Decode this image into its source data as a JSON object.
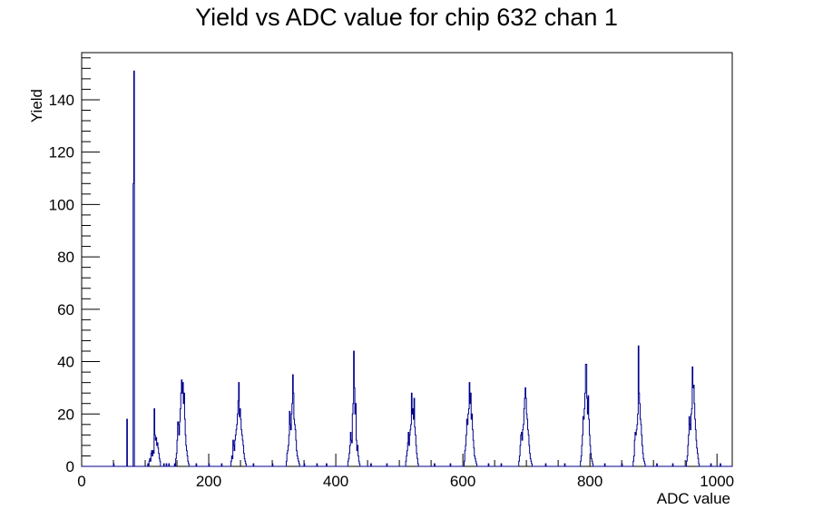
{
  "chart_data": {
    "type": "histogram",
    "title": "Yield vs ADC value for chip 632 chan 1",
    "xlabel": "ADC value",
    "ylabel": "Yield",
    "xlim": [
      0,
      1024
    ],
    "ylim": [
      0,
      158
    ],
    "x_ticks": [
      0,
      200,
      400,
      600,
      800,
      1000
    ],
    "y_ticks": [
      0,
      20,
      40,
      60,
      80,
      100,
      120,
      140
    ],
    "x_tick_labels": [
      "0",
      "200",
      "400",
      "600",
      "800",
      "1000"
    ],
    "y_tick_labels": [
      "0",
      "20",
      "40",
      "60",
      "80",
      "100",
      "120",
      "140"
    ],
    "grid": false,
    "legend": "none",
    "line_color": "#00008b",
    "bins": [
      [
        50,
        1
      ],
      [
        71,
        18
      ],
      [
        72,
        0
      ],
      [
        81,
        108
      ],
      [
        82,
        151
      ],
      [
        83,
        0
      ],
      [
        104,
        1
      ],
      [
        106,
        2
      ],
      [
        107,
        3
      ],
      [
        108,
        2
      ],
      [
        109,
        5
      ],
      [
        110,
        6
      ],
      [
        111,
        4
      ],
      [
        112,
        6
      ],
      [
        113,
        5
      ],
      [
        114,
        22
      ],
      [
        115,
        12
      ],
      [
        116,
        10
      ],
      [
        117,
        11
      ],
      [
        118,
        8
      ],
      [
        119,
        9
      ],
      [
        120,
        7
      ],
      [
        121,
        5
      ],
      [
        122,
        3
      ],
      [
        123,
        2
      ],
      [
        124,
        0
      ],
      [
        129,
        1
      ],
      [
        133,
        1
      ],
      [
        137,
        1
      ],
      [
        146,
        1
      ],
      [
        148,
        3
      ],
      [
        149,
        5
      ],
      [
        150,
        10
      ],
      [
        151,
        17
      ],
      [
        152,
        16
      ],
      [
        153,
        12
      ],
      [
        154,
        17
      ],
      [
        155,
        22
      ],
      [
        156,
        28
      ],
      [
        157,
        33
      ],
      [
        158,
        28
      ],
      [
        159,
        32
      ],
      [
        160,
        24
      ],
      [
        161,
        28
      ],
      [
        162,
        18
      ],
      [
        163,
        12
      ],
      [
        164,
        8
      ],
      [
        165,
        6
      ],
      [
        166,
        4
      ],
      [
        167,
        2
      ],
      [
        168,
        1
      ],
      [
        169,
        0
      ],
      [
        180,
        1
      ],
      [
        200,
        1
      ],
      [
        220,
        1
      ],
      [
        235,
        2
      ],
      [
        236,
        4
      ],
      [
        237,
        3
      ],
      [
        238,
        10
      ],
      [
        239,
        8
      ],
      [
        240,
        6
      ],
      [
        241,
        10
      ],
      [
        242,
        12
      ],
      [
        243,
        14
      ],
      [
        244,
        16
      ],
      [
        245,
        20
      ],
      [
        246,
        25
      ],
      [
        247,
        32
      ],
      [
        248,
        19
      ],
      [
        249,
        22
      ],
      [
        250,
        18
      ],
      [
        251,
        14
      ],
      [
        252,
        12
      ],
      [
        253,
        10
      ],
      [
        254,
        8
      ],
      [
        255,
        5
      ],
      [
        256,
        3
      ],
      [
        257,
        2
      ],
      [
        258,
        1
      ],
      [
        259,
        0
      ],
      [
        270,
        1
      ],
      [
        300,
        1
      ],
      [
        322,
        2
      ],
      [
        323,
        5
      ],
      [
        324,
        6
      ],
      [
        325,
        8
      ],
      [
        326,
        12
      ],
      [
        327,
        21
      ],
      [
        328,
        16
      ],
      [
        329,
        14
      ],
      [
        330,
        20
      ],
      [
        331,
        24
      ],
      [
        332,
        35
      ],
      [
        333,
        28
      ],
      [
        334,
        18
      ],
      [
        335,
        16
      ],
      [
        336,
        14
      ],
      [
        337,
        10
      ],
      [
        338,
        6
      ],
      [
        339,
        4
      ],
      [
        340,
        3
      ],
      [
        341,
        2
      ],
      [
        342,
        1
      ],
      [
        343,
        0
      ],
      [
        350,
        1
      ],
      [
        370,
        1
      ],
      [
        385,
        1
      ],
      [
        419,
        2
      ],
      [
        420,
        3
      ],
      [
        421,
        5
      ],
      [
        422,
        8
      ],
      [
        423,
        13
      ],
      [
        424,
        10
      ],
      [
        425,
        9
      ],
      [
        426,
        20
      ],
      [
        427,
        24
      ],
      [
        428,
        44
      ],
      [
        429,
        30
      ],
      [
        430,
        20
      ],
      [
        431,
        24
      ],
      [
        432,
        10
      ],
      [
        433,
        6
      ],
      [
        434,
        8
      ],
      [
        435,
        4
      ],
      [
        436,
        2
      ],
      [
        437,
        1
      ],
      [
        438,
        0
      ],
      [
        455,
        1
      ],
      [
        480,
        1
      ],
      [
        510,
        2
      ],
      [
        511,
        4
      ],
      [
        512,
        6
      ],
      [
        513,
        9
      ],
      [
        514,
        13
      ],
      [
        515,
        8
      ],
      [
        516,
        12
      ],
      [
        517,
        14
      ],
      [
        518,
        16
      ],
      [
        519,
        28
      ],
      [
        520,
        20
      ],
      [
        521,
        22
      ],
      [
        522,
        18
      ],
      [
        523,
        26
      ],
      [
        524,
        15
      ],
      [
        525,
        12
      ],
      [
        526,
        8
      ],
      [
        527,
        5
      ],
      [
        528,
        3
      ],
      [
        529,
        1
      ],
      [
        530,
        0
      ],
      [
        555,
        1
      ],
      [
        580,
        1
      ],
      [
        602,
        2
      ],
      [
        603,
        6
      ],
      [
        604,
        8
      ],
      [
        605,
        12
      ],
      [
        606,
        18
      ],
      [
        607,
        16
      ],
      [
        608,
        20
      ],
      [
        609,
        22
      ],
      [
        610,
        32
      ],
      [
        611,
        24
      ],
      [
        612,
        28
      ],
      [
        613,
        18
      ],
      [
        614,
        20
      ],
      [
        615,
        14
      ],
      [
        616,
        10
      ],
      [
        617,
        7
      ],
      [
        618,
        4
      ],
      [
        619,
        3
      ],
      [
        620,
        2
      ],
      [
        621,
        1
      ],
      [
        622,
        0
      ],
      [
        640,
        1
      ],
      [
        660,
        1
      ],
      [
        688,
        2
      ],
      [
        689,
        4
      ],
      [
        690,
        8
      ],
      [
        691,
        12
      ],
      [
        692,
        13
      ],
      [
        693,
        10
      ],
      [
        694,
        14
      ],
      [
        695,
        16
      ],
      [
        696,
        22
      ],
      [
        697,
        26
      ],
      [
        698,
        30
      ],
      [
        699,
        26
      ],
      [
        700,
        20
      ],
      [
        701,
        18
      ],
      [
        702,
        14
      ],
      [
        703,
        12
      ],
      [
        704,
        8
      ],
      [
        705,
        5
      ],
      [
        706,
        3
      ],
      [
        707,
        2
      ],
      [
        708,
        1
      ],
      [
        709,
        0
      ],
      [
        730,
        1
      ],
      [
        760,
        1
      ],
      [
        785,
        2
      ],
      [
        786,
        4
      ],
      [
        787,
        8
      ],
      [
        788,
        12
      ],
      [
        789,
        19
      ],
      [
        790,
        18
      ],
      [
        791,
        22
      ],
      [
        792,
        28
      ],
      [
        793,
        39
      ],
      [
        794,
        39
      ],
      [
        795,
        26
      ],
      [
        796,
        20
      ],
      [
        797,
        27
      ],
      [
        798,
        18
      ],
      [
        799,
        12
      ],
      [
        800,
        8
      ],
      [
        801,
        5
      ],
      [
        802,
        3
      ],
      [
        803,
        2
      ],
      [
        804,
        1
      ],
      [
        805,
        0
      ],
      [
        823,
        1
      ],
      [
        850,
        1
      ],
      [
        868,
        2
      ],
      [
        869,
        4
      ],
      [
        870,
        10
      ],
      [
        871,
        13
      ],
      [
        872,
        12
      ],
      [
        873,
        14
      ],
      [
        874,
        16
      ],
      [
        875,
        20
      ],
      [
        876,
        46
      ],
      [
        877,
        28
      ],
      [
        878,
        24
      ],
      [
        879,
        18
      ],
      [
        880,
        16
      ],
      [
        881,
        12
      ],
      [
        882,
        8
      ],
      [
        883,
        5
      ],
      [
        884,
        3
      ],
      [
        885,
        2
      ],
      [
        886,
        1
      ],
      [
        887,
        0
      ],
      [
        905,
        1
      ],
      [
        930,
        1
      ],
      [
        952,
        2
      ],
      [
        953,
        4
      ],
      [
        954,
        8
      ],
      [
        955,
        12
      ],
      [
        956,
        19
      ],
      [
        957,
        16
      ],
      [
        958,
        14
      ],
      [
        959,
        20
      ],
      [
        960,
        22
      ],
      [
        961,
        38
      ],
      [
        962,
        30
      ],
      [
        963,
        31
      ],
      [
        964,
        24
      ],
      [
        965,
        18
      ],
      [
        966,
        14
      ],
      [
        967,
        10
      ],
      [
        968,
        7
      ],
      [
        969,
        5
      ],
      [
        970,
        3
      ],
      [
        971,
        1
      ],
      [
        972,
        0
      ],
      [
        990,
        1
      ],
      [
        1005,
        1
      ]
    ]
  }
}
